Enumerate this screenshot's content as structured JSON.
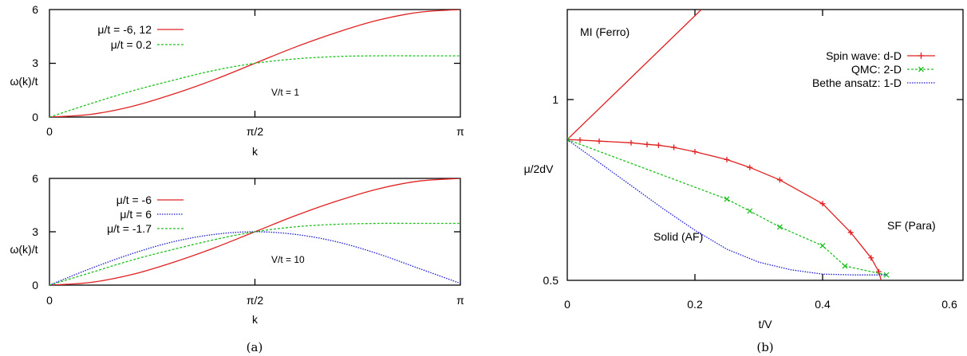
{
  "captions": {
    "a": "(a)",
    "b": "(b)"
  },
  "chart_data": [
    {
      "type": "line",
      "panel": "a-top",
      "xlabel": "k",
      "ylabel": "ω(k)/t",
      "x_ticks": [
        "0",
        "π/2",
        "π"
      ],
      "y_ticks": [
        "0",
        "3",
        "6"
      ],
      "ylim": [
        0,
        6
      ],
      "xlim": [
        "0",
        "π"
      ],
      "annotation": "V/t = 1",
      "legend_position": "top-left",
      "colors": {
        "red": "#e02020",
        "green": "#20c020",
        "blue": "#1a1ad0"
      },
      "series": [
        {
          "name": "μ/t = -6, 12",
          "color": "#e02020",
          "dash": "solid",
          "x": [
            0,
            0.1,
            0.2,
            0.3,
            0.4,
            0.5,
            0.6,
            0.7,
            0.8,
            0.9,
            1.0
          ],
          "y": [
            0,
            0.15,
            0.59,
            1.27,
            2.08,
            3.0,
            3.92,
            4.73,
            5.41,
            5.85,
            6.0
          ]
        },
        {
          "name": "μ/t = 0.2",
          "color": "#20c020",
          "dash": "dashed",
          "x": [
            0,
            0.1,
            0.2,
            0.3,
            0.4,
            0.5,
            0.6,
            0.7,
            0.8,
            0.9,
            1.0
          ],
          "y": [
            0,
            0.75,
            1.45,
            2.05,
            2.6,
            3.0,
            3.25,
            3.38,
            3.42,
            3.42,
            3.42
          ]
        }
      ]
    },
    {
      "type": "line",
      "panel": "a-bottom",
      "xlabel": "k",
      "ylabel": "ω(k)/t",
      "x_ticks": [
        "0",
        "π/2",
        "π"
      ],
      "y_ticks": [
        "0",
        "3",
        "6"
      ],
      "ylim": [
        0,
        6
      ],
      "xlim": [
        "0",
        "π"
      ],
      "annotation": "V/t = 10",
      "legend_position": "top-left",
      "series": [
        {
          "name": "μ/t = -6",
          "color": "#e02020",
          "dash": "solid",
          "x": [
            0,
            0.1,
            0.2,
            0.3,
            0.4,
            0.5,
            0.6,
            0.7,
            0.8,
            0.9,
            1.0
          ],
          "y": [
            0,
            0.15,
            0.59,
            1.27,
            2.08,
            3.0,
            3.92,
            4.73,
            5.41,
            5.85,
            6.0
          ]
        },
        {
          "name": "μ/t = 6",
          "color": "#1a1ad0",
          "dash": "dotted",
          "x": [
            0,
            0.1,
            0.2,
            0.3,
            0.4,
            0.5,
            0.6,
            0.7,
            0.8,
            0.9,
            1.0
          ],
          "y": [
            0,
            0.93,
            1.76,
            2.43,
            2.85,
            3.0,
            2.85,
            2.43,
            1.76,
            0.93,
            0.1
          ]
        },
        {
          "name": "μ/t = -1.7",
          "color": "#20c020",
          "dash": "dashed",
          "x": [
            0,
            0.1,
            0.2,
            0.3,
            0.4,
            0.5,
            0.6,
            0.7,
            0.8,
            0.9,
            1.0
          ],
          "y": [
            0,
            0.7,
            1.4,
            2.0,
            2.55,
            3.0,
            3.28,
            3.42,
            3.47,
            3.47,
            3.47
          ]
        }
      ]
    },
    {
      "type": "line",
      "panel": "b",
      "xlabel": "t/V",
      "ylabel": "μ/2dV",
      "x_ticks": [
        "0",
        "0.2",
        "0.4",
        "0.6"
      ],
      "y_ticks": [
        "0.5",
        "1"
      ],
      "xlim": [
        0,
        0.62
      ],
      "ylim": [
        0.48,
        1.48
      ],
      "legend_position": "top-right",
      "annotations": [
        "MI (Ferro)",
        "Solid (AF)",
        "SF (Para)"
      ],
      "series": [
        {
          "name": "",
          "color": "#e02020",
          "dash": "solid",
          "marker": "none",
          "x": [
            0,
            0.21
          ],
          "y": [
            1,
            1.48
          ]
        },
        {
          "name": "Spin wave: d-D",
          "color": "#e02020",
          "dash": "solid",
          "marker": "plus",
          "x": [
            0,
            0.02,
            0.05,
            0.1,
            0.125,
            0.143,
            0.167,
            0.2,
            0.25,
            0.286,
            0.333,
            0.4,
            0.444,
            0.476,
            0.488,
            0.494,
            0.497
          ],
          "y": [
            1.0,
            0.998,
            0.994,
            0.988,
            0.982,
            0.979,
            0.971,
            0.955,
            0.926,
            0.897,
            0.851,
            0.763,
            0.657,
            0.563,
            0.512,
            0.461,
            0.43
          ]
        },
        {
          "name": "QMC: 2-D",
          "color": "#20c020",
          "dash": "dashed",
          "marker": "x",
          "x": [
            0,
            0.25,
            0.286,
            0.333,
            0.4,
            0.435,
            0.5
          ],
          "y": [
            1.0,
            0.78,
            0.736,
            0.677,
            0.608,
            0.533,
            0.5
          ]
        },
        {
          "name": "Bethe ansatz: 1-D",
          "color": "#1a1ad0",
          "dash": "dotted",
          "marker": "none",
          "x": [
            0,
            0.05,
            0.1,
            0.15,
            0.2,
            0.25,
            0.3,
            0.35,
            0.4,
            0.45,
            0.5
          ],
          "y": [
            1.0,
            0.915,
            0.83,
            0.745,
            0.665,
            0.595,
            0.547,
            0.519,
            0.503,
            0.5,
            0.5
          ]
        }
      ]
    }
  ]
}
